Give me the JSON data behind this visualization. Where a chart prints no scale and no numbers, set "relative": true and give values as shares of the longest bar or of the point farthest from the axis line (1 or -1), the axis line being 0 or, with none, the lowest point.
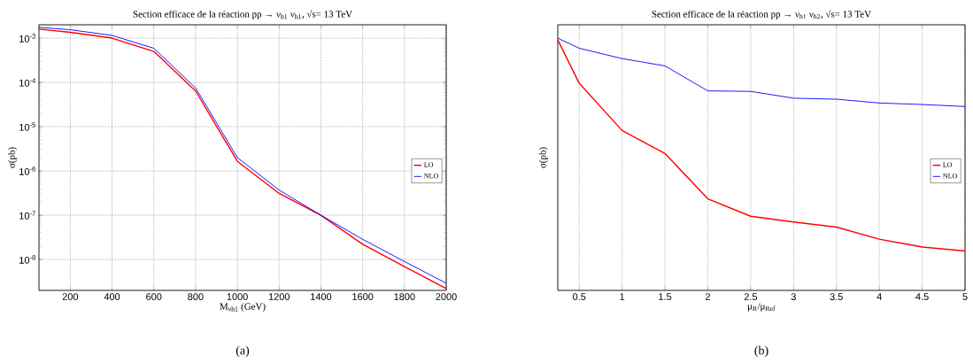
{
  "chart_data": [
    {
      "type": "line",
      "title": "Section efficace de la réaction pp → ν$_{h1}$ ν$_{h1}$, √s= 13 TeV",
      "xlabel": "M$_{νh1}$ (GeV)",
      "ylabel": "σ(pb)",
      "annotations": [
        "(a)"
      ],
      "x": [
        50,
        200,
        400,
        600,
        800,
        1000,
        1200,
        1400,
        1600,
        1800,
        2000
      ],
      "series": [
        {
          "name": "LO",
          "color": "#ff0000",
          "values": [
            0.0016,
            0.00135,
            0.001,
            0.0005,
            6.4e-05,
            1.65e-06,
            3.1e-07,
            1e-07,
            2.2e-08,
            6.9e-09,
            2.2e-09
          ]
        },
        {
          "name": "NLO",
          "color": "#0000ff",
          "values": [
            0.00175,
            0.00155,
            0.00115,
            0.00059,
            7.5e-05,
            2e-06,
            3.7e-07,
            1e-07,
            2.85e-08,
            9e-09,
            2.9e-09
          ]
        }
      ],
      "xlim": [
        50,
        2000
      ],
      "ylim": [
        2e-09,
        0.002
      ],
      "log": "y",
      "xticks": [
        200,
        400,
        600,
        800,
        1000,
        1200,
        1400,
        1600,
        1800,
        2000
      ],
      "yticks": [
        {
          "value": 1e-08,
          "label": "10$^{-8}$"
        },
        {
          "value": 1e-07,
          "label": "10$^{-7}$"
        },
        {
          "value": 1e-06,
          "label": "10$^{-6}$"
        },
        {
          "value": 1e-05,
          "label": "10$^{-5}$"
        },
        {
          "value": 0.0001,
          "label": "10$^{-4}$"
        },
        {
          "value": 0.001,
          "label": "10$^{-3}$"
        }
      ],
      "grid": true,
      "legend": "right",
      "marker": "none",
      "line_style": "solid"
    },
    {
      "type": "line",
      "title": "Section efficace de la réaction pp → ν$_{h1}$ ν$_{h2}$, √s= 13 TeV",
      "xlabel": "μ$_{R}$/μ$_{Ref}$",
      "ylabel": "σ(pb)",
      "annotations": [
        "(b)"
      ],
      "x": [
        0.25,
        0.5,
        1,
        1.5,
        2,
        2.5,
        3,
        3.5,
        4,
        4.5,
        5
      ],
      "series": [
        {
          "name": "LO",
          "color": "#ff0000",
          "values": [
            0.993,
            0.821,
            0.634,
            0.543,
            0.363,
            0.294,
            0.271,
            0.251,
            0.203,
            0.172,
            0.156
          ]
        },
        {
          "name": "NLO",
          "color": "#0000ff",
          "values": [
            1,
            0.96,
            0.919,
            0.89,
            0.791,
            0.789,
            0.762,
            0.758,
            0.743,
            0.737,
            0.729
          ]
        }
      ],
      "relative": true,
      "xlim": [
        0.25,
        5
      ],
      "xticks": [
        0.5,
        1,
        1.5,
        2,
        2.5,
        3,
        3.5,
        4,
        4.5,
        5
      ],
      "tick_labels": "x",
      "grid": "x",
      "legend": "right",
      "marker": "none",
      "line_style": "solid"
    }
  ]
}
